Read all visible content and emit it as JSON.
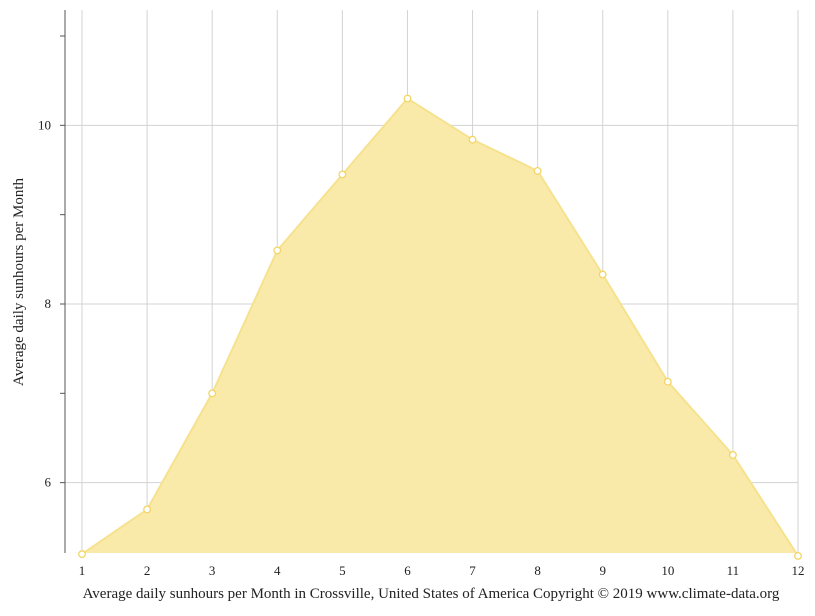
{
  "chart_data": {
    "type": "area",
    "x": [
      1,
      2,
      3,
      4,
      5,
      6,
      7,
      8,
      9,
      10,
      11,
      12
    ],
    "values": [
      5.2,
      5.7,
      7.0,
      8.6,
      9.45,
      10.3,
      9.84,
      9.49,
      8.33,
      7.13,
      6.31,
      5.18
    ],
    "xlabel": "",
    "ylabel": "Average daily sunhours per Month",
    "caption": "Average daily sunhours per Month in Crossville, United States of America Copyright © 2019 www.climate-data.org",
    "xlim": [
      1,
      12
    ],
    "ylim": [
      5.2,
      11.0
    ],
    "x_ticks": [
      1,
      2,
      3,
      4,
      5,
      6,
      7,
      8,
      9,
      10,
      11,
      12
    ],
    "y_ticks": [
      6,
      8,
      10
    ],
    "y_minor_ticks": [
      7,
      9,
      11
    ],
    "grid": true,
    "colors": {
      "fill": "#f9eaa9",
      "stroke": "#f6e28e",
      "marker_fill": "#ffffff",
      "marker_stroke": "#f2d564",
      "grid": "#d3d3d3",
      "axis": "#555555"
    }
  }
}
